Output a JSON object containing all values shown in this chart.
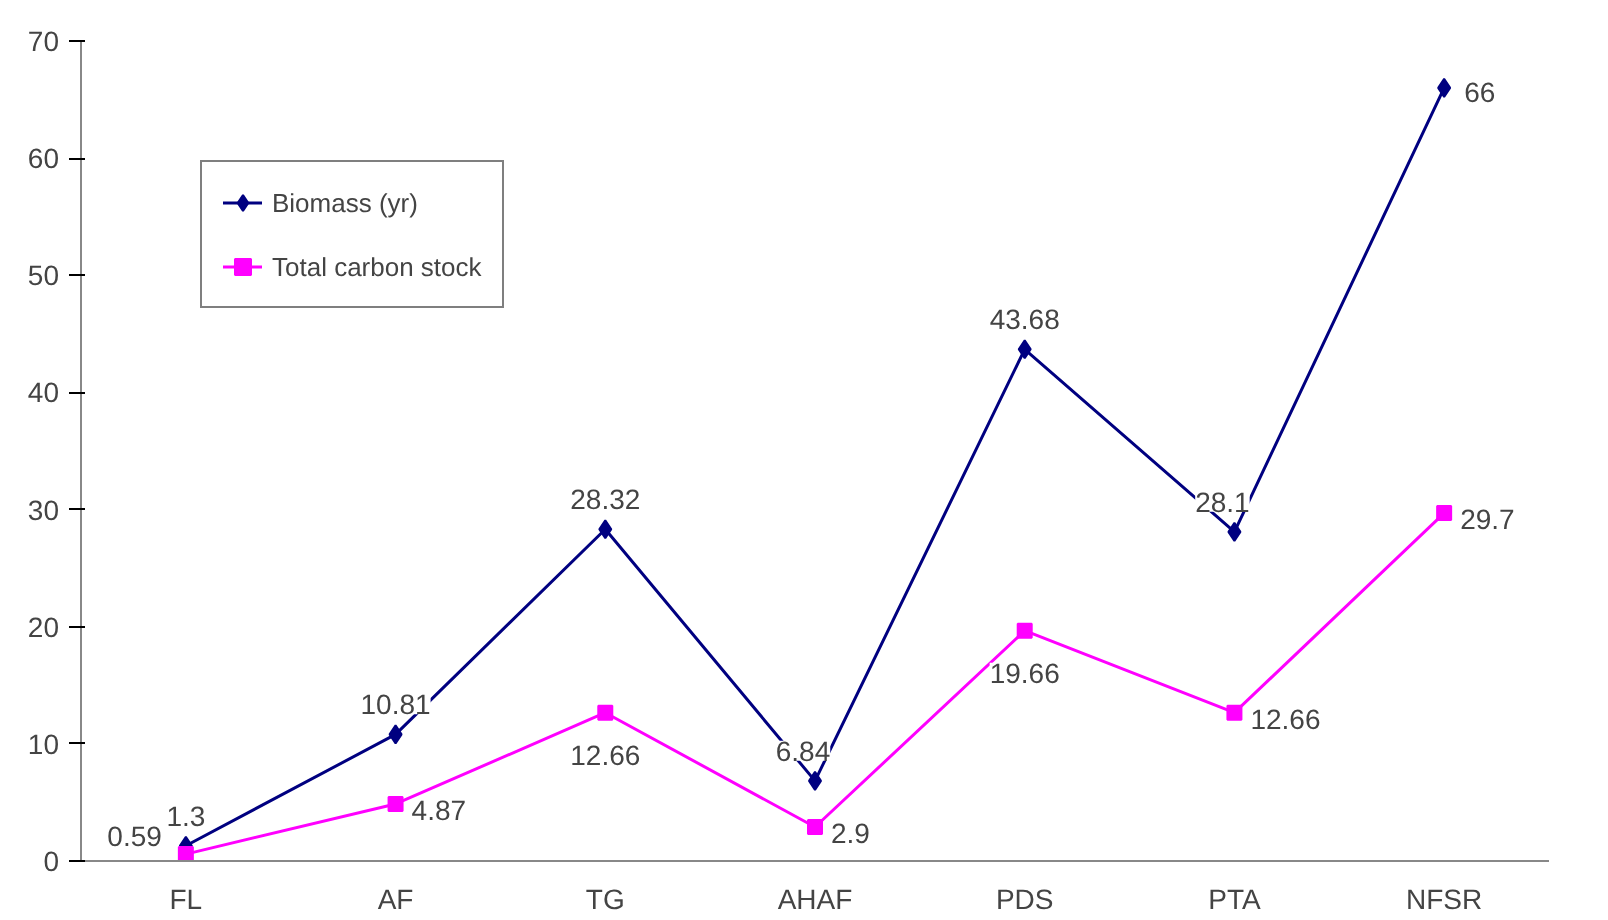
{
  "chart_data": {
    "type": "line",
    "categories": [
      "FL",
      "AF",
      "TG",
      "AHAF",
      "PDS",
      "PTA",
      "NFSR"
    ],
    "series": [
      {
        "name": "Biomass (yr)",
        "color": "#000080",
        "marker": "diamond",
        "values": [
          1.3,
          10.81,
          28.32,
          6.84,
          43.68,
          28.1,
          66
        ]
      },
      {
        "name": "Total carbon stock",
        "color": "#ff00ff",
        "marker": "square",
        "values": [
          0.59,
          4.87,
          12.66,
          2.9,
          19.66,
          12.66,
          29.7
        ]
      }
    ],
    "ylim": [
      0,
      70
    ],
    "yticks": [
      0,
      10,
      20,
      30,
      40,
      50,
      60,
      70
    ],
    "grid": false,
    "legend": "top left",
    "data_labels": true,
    "line_style": "solid"
  }
}
